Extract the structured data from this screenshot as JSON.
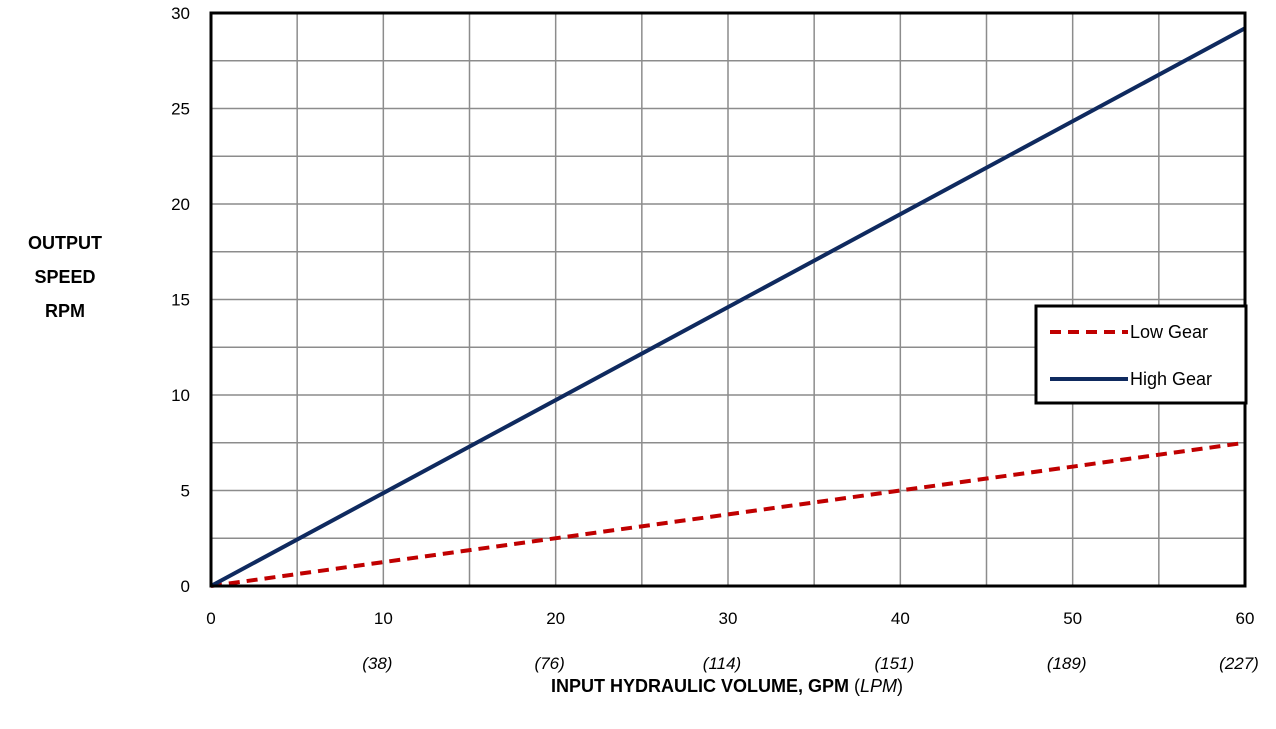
{
  "chart_data": {
    "type": "line",
    "ylabel_lines": [
      "OUTPUT",
      "SPEED",
      "RPM"
    ],
    "xlabel_main": "INPUT HYDRAULIC VOLUME, GPM",
    "xlabel_unit_open": " (",
    "xlabel_unit": "LPM",
    "xlabel_unit_close": ")",
    "xlim": [
      0,
      60
    ],
    "ylim": [
      0,
      30
    ],
    "x_ticks": [
      0,
      10,
      20,
      30,
      40,
      50,
      60
    ],
    "x_tick_labels": [
      "0",
      "10",
      "20",
      "30",
      "40",
      "50",
      "60"
    ],
    "x_secondary_ticks": [
      10,
      20,
      30,
      40,
      50,
      60
    ],
    "x_secondary_labels": [
      "(38)",
      "(76)",
      "(114)",
      "(151)",
      "(189)",
      "(227)"
    ],
    "y_ticks": [
      0,
      5,
      10,
      15,
      20,
      25,
      30
    ],
    "y_tick_labels": [
      "0",
      "5",
      "10",
      "15",
      "20",
      "25",
      "30"
    ],
    "grid": true,
    "grid_x_step": 5,
    "grid_y_step": 2.5,
    "legend_position": "right",
    "series": [
      {
        "name": "Low Gear",
        "x": [
          0,
          60
        ],
        "y": [
          0,
          7.5
        ],
        "color": "#c00000",
        "style": "dashed"
      },
      {
        "name": "High Gear",
        "x": [
          0,
          60
        ],
        "y": [
          0,
          29.2
        ],
        "color": "#0f2a5f",
        "style": "solid"
      }
    ]
  }
}
